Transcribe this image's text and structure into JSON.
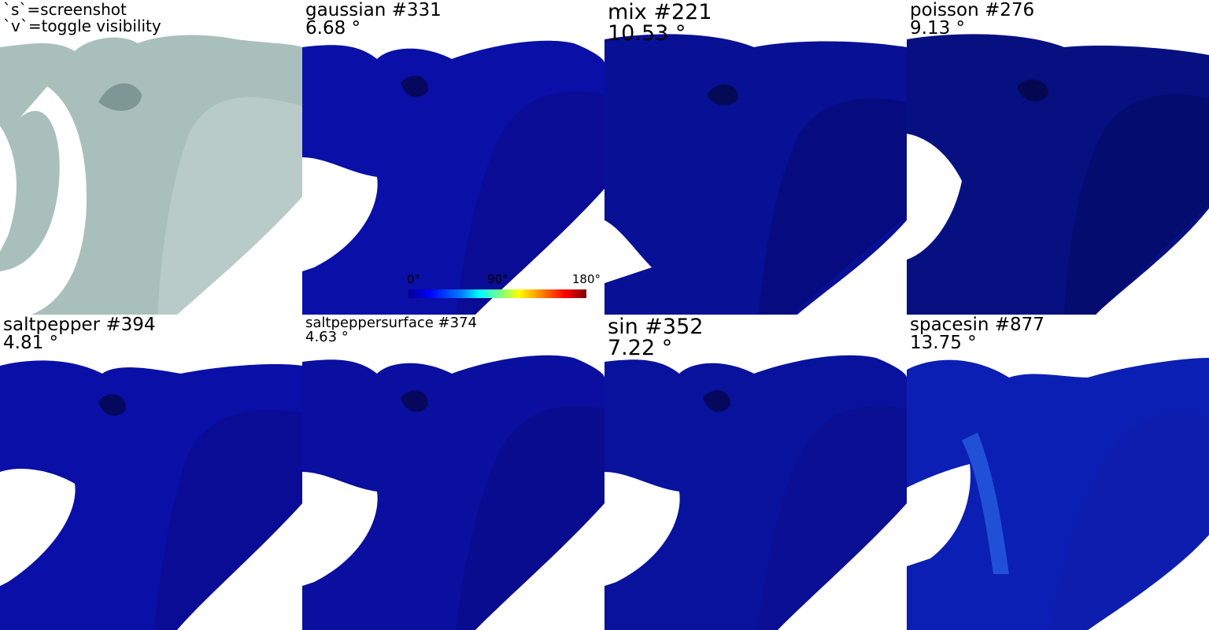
{
  "hints": {
    "line1": "`s`=screenshot",
    "line2": "`v`=toggle visibility"
  },
  "views": [
    {
      "name": "",
      "error": "",
      "shading": "plain",
      "color": "#9fb6b3"
    },
    {
      "name": "gaussian #331",
      "error": "6.68 °",
      "color": "#0a0fa8"
    },
    {
      "name": "mix #221",
      "error": "10.53 °",
      "color": "#081095"
    },
    {
      "name": "poisson #276",
      "error": "9.13 °",
      "color": "#061080"
    },
    {
      "name": "saltpepper #394",
      "error": "4.81 °",
      "color": "#0a0fa8"
    },
    {
      "name": "saltpeppersurface #374",
      "error": "4.63 °",
      "color": "#0a0fa0"
    },
    {
      "name": "sin #352",
      "error": "7.22 °",
      "color": "#08129c"
    },
    {
      "name": "spacesin #877",
      "error": "13.75 °",
      "color": "#0c1fb4"
    }
  ],
  "colorbar": {
    "min_label": "0°",
    "mid_label": "90°",
    "max_label": "180°"
  }
}
